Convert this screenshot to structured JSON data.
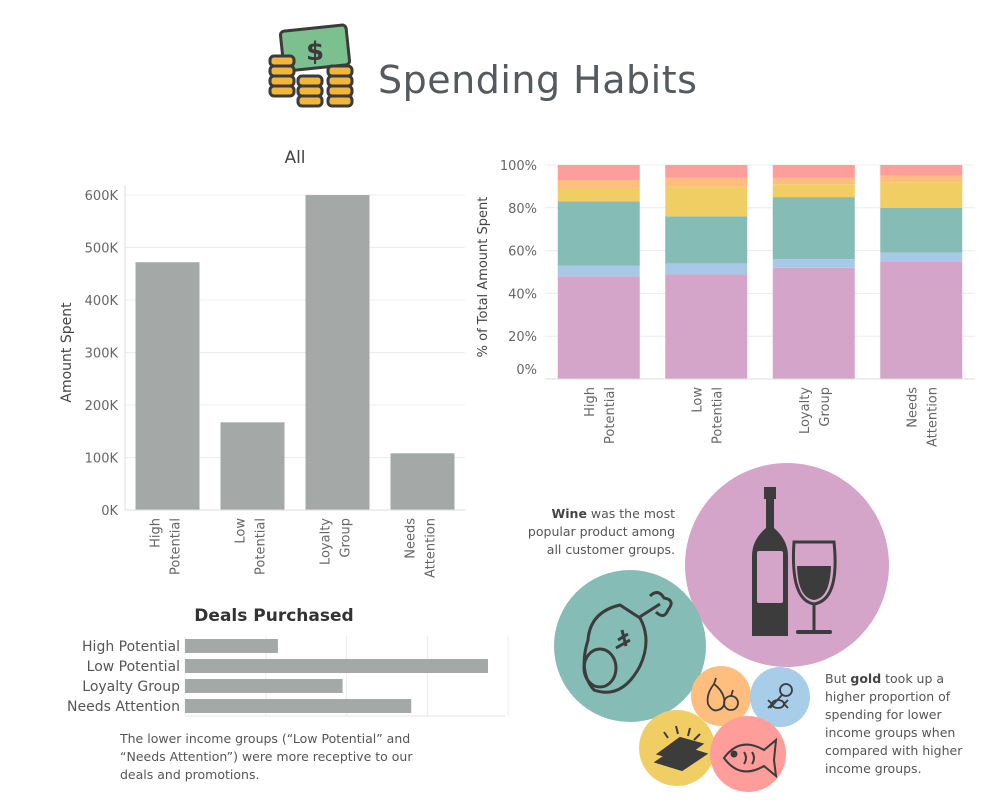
{
  "header": {
    "title": "Spending Habits",
    "logo_icon": "money-coins-icon"
  },
  "colors": {
    "bar_gray": "#a4a9a8",
    "wine": "#d4a5c9",
    "fruit": "#a8c8e8",
    "meat": "#86bcb6",
    "gold": "#f1ce63",
    "sweets": "#ffbe7d",
    "fish": "#ff9d9a",
    "teal_circle": "#86bcb6",
    "orange_circle": "#ffbe7d",
    "blue_circle": "#a8cde8",
    "yellow_circle": "#f1ce63",
    "red_circle": "#ff9d9a"
  },
  "chart_data": [
    {
      "id": "amount-spent",
      "type": "bar",
      "title": "All",
      "ylabel": "Amount Spent",
      "xlabel": "",
      "categories": [
        [
          "High",
          "Potential"
        ],
        [
          "Low",
          "Potential"
        ],
        [
          "Loyalty",
          "Group"
        ],
        [
          "Needs",
          "Attention"
        ]
      ],
      "values": [
        472000,
        167000,
        600000,
        108000
      ],
      "ylim": [
        0,
        600000
      ],
      "yticks": [
        0,
        100000,
        200000,
        300000,
        400000,
        500000,
        600000
      ],
      "ytick_labels": [
        "0K",
        "100K",
        "200K",
        "300K",
        "400K",
        "500K",
        "600K"
      ],
      "grid": true
    },
    {
      "id": "percent-spent",
      "type": "bar",
      "stacked": true,
      "ylabel": "% of Total Amount Spent",
      "categories": [
        [
          "High",
          "Potential"
        ],
        [
          "Low",
          "Potential"
        ],
        [
          "Loyalty",
          "Group"
        ],
        [
          "Needs",
          "Attention"
        ]
      ],
      "ylim": [
        0,
        100
      ],
      "yticks": [
        0,
        20,
        40,
        60,
        80,
        100
      ],
      "ytick_labels": [
        "0%",
        "20%",
        "40%",
        "60%",
        "80%",
        "100%"
      ],
      "series": [
        {
          "color": "#d4a5c9",
          "values": [
            48,
            49,
            52,
            55
          ]
        },
        {
          "color": "#a8c8e8",
          "values": [
            5,
            5,
            4,
            4
          ]
        },
        {
          "color": "#86bcb6",
          "values": [
            30,
            22,
            29,
            21
          ]
        },
        {
          "color": "#f1ce63",
          "values": [
            6,
            14,
            6,
            12
          ]
        },
        {
          "color": "#ffbe7d",
          "values": [
            4,
            4,
            3,
            3
          ]
        },
        {
          "color": "#ff9d9a",
          "values": [
            7,
            6,
            6,
            5
          ]
        }
      ],
      "grid": true
    },
    {
      "id": "deals-purchased",
      "type": "bar",
      "orientation": "horizontal",
      "title": "Deals Purchased",
      "categories": [
        "High Potential",
        "Low Potential",
        "Loyalty Group",
        "Needs Attention"
      ],
      "values": [
        2.3,
        7.5,
        3.9,
        5.6
      ],
      "xlim": [
        0,
        8
      ],
      "grid": true
    }
  ],
  "notes": {
    "deals": "The lower income groups (“Low Potential” and “Needs Attention”) were more receptive to our deals and promotions.",
    "wine_bold": "Wine",
    "wine_rest1": " was the most",
    "wine_line2": "popular product among",
    "wine_line3": "all customer groups.",
    "gold_pre": "But ",
    "gold_bold": "gold",
    "gold_rest1": " took up a",
    "gold_line2": "higher proportion of",
    "gold_line3": "spending for lower",
    "gold_line4": "income groups when",
    "gold_line5": "compared with higher",
    "gold_line6": "income groups."
  },
  "bubbles": [
    {
      "name": "wine-bubble",
      "icon": "wine-bottle-glass-icon",
      "color": "#d4a5c9"
    },
    {
      "name": "meat-bubble",
      "icon": "ham-leg-icon",
      "color": "#86bcb6"
    },
    {
      "name": "fruit-bubble",
      "icon": "fruit-icon",
      "color": "#ffbe7d"
    },
    {
      "name": "sweets-bubble",
      "icon": "candy-icon",
      "color": "#a8cde8"
    },
    {
      "name": "gold-bubble",
      "icon": "gold-bars-icon",
      "color": "#f1ce63"
    },
    {
      "name": "fish-bubble",
      "icon": "fish-icon",
      "color": "#ff9d9a"
    }
  ]
}
